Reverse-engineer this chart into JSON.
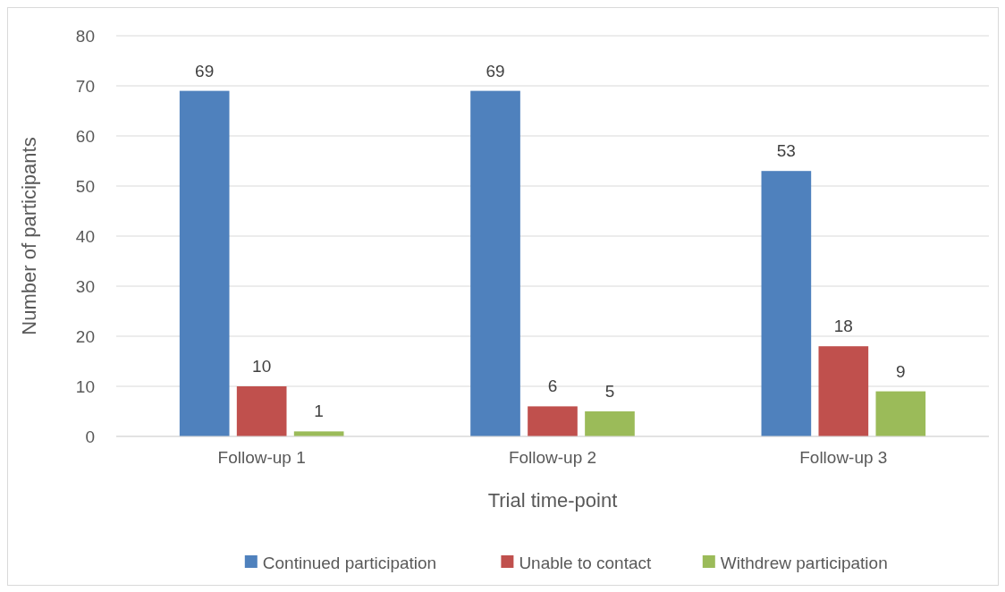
{
  "chart_data": {
    "type": "bar",
    "xlabel": "Trial time-point",
    "ylabel": "Number of participants",
    "categories": [
      "Follow-up 1",
      "Follow-up 2",
      "Follow-up 3"
    ],
    "series": [
      {
        "name": "Continued participation",
        "color": "#4f81bd",
        "values": [
          69,
          69,
          53
        ]
      },
      {
        "name": "Unable to contact",
        "color": "#c0504d",
        "values": [
          10,
          6,
          18
        ]
      },
      {
        "name": "Withdrew participation",
        "color": "#9bbb59",
        "values": [
          1,
          5,
          9
        ]
      }
    ],
    "ylim": [
      0,
      80
    ],
    "yticks": [
      0,
      10,
      20,
      30,
      40,
      50,
      60,
      70,
      80
    ],
    "grid": "y",
    "legend": "bottom",
    "data_labels": true
  }
}
